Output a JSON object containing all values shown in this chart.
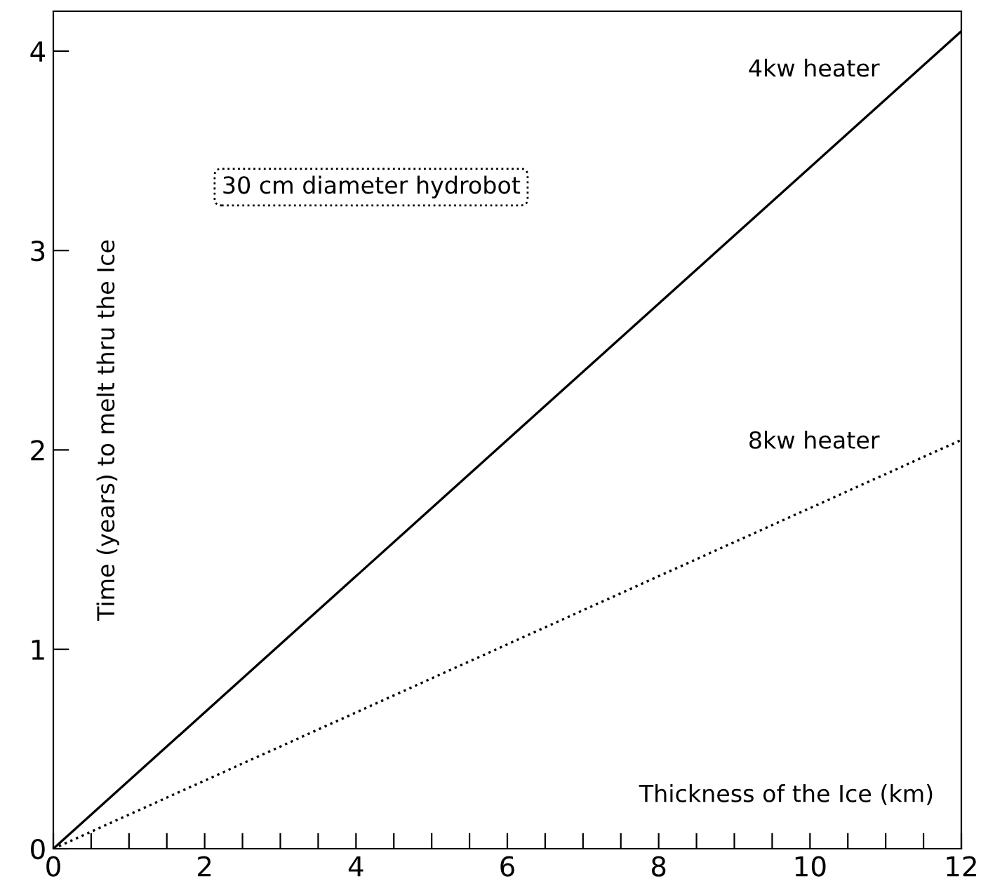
{
  "chart_data": {
    "type": "line",
    "xlabel": "Thickness of the Ice (km)",
    "ylabel": "Time (years) to melt thru the Ice",
    "annotations": [
      "30 cm diameter hydrobot"
    ],
    "x": [
      0,
      12
    ],
    "series": [
      {
        "name": "4kw heater",
        "color": "#000000",
        "values": [
          0,
          4.1
        ],
        "line_style": "solid"
      },
      {
        "name": "8kw heater",
        "color": "#000000",
        "values": [
          0,
          2.05
        ],
        "line_style": "dotted"
      }
    ],
    "xlim": [
      0,
      12
    ],
    "ylim": [
      0,
      4.2
    ],
    "xticks": [
      0,
      {
        "value": 0.5,
        "label": null
      },
      {
        "value": 1,
        "label": null
      },
      {
        "value": 1.5,
        "label": null
      },
      2,
      {
        "value": 2.5,
        "label": null
      },
      {
        "value": 3,
        "label": null
      },
      {
        "value": 3.5,
        "label": null
      },
      4,
      {
        "value": 4.5,
        "label": null
      },
      {
        "value": 5,
        "label": null
      },
      {
        "value": 5.5,
        "label": null
      },
      6,
      {
        "value": 6.5,
        "label": null
      },
      {
        "value": 7,
        "label": null
      },
      {
        "value": 7.5,
        "label": null
      },
      8,
      {
        "value": 8.5,
        "label": null
      },
      {
        "value": 9,
        "label": null
      },
      {
        "value": 9.5,
        "label": null
      },
      10,
      {
        "value": 10.5,
        "label": null
      },
      {
        "value": 11,
        "label": null
      },
      {
        "value": 11.5,
        "label": null
      },
      12
    ],
    "yticks": [
      0,
      1,
      2,
      3,
      4
    ],
    "grid": false,
    "legend": false
  }
}
